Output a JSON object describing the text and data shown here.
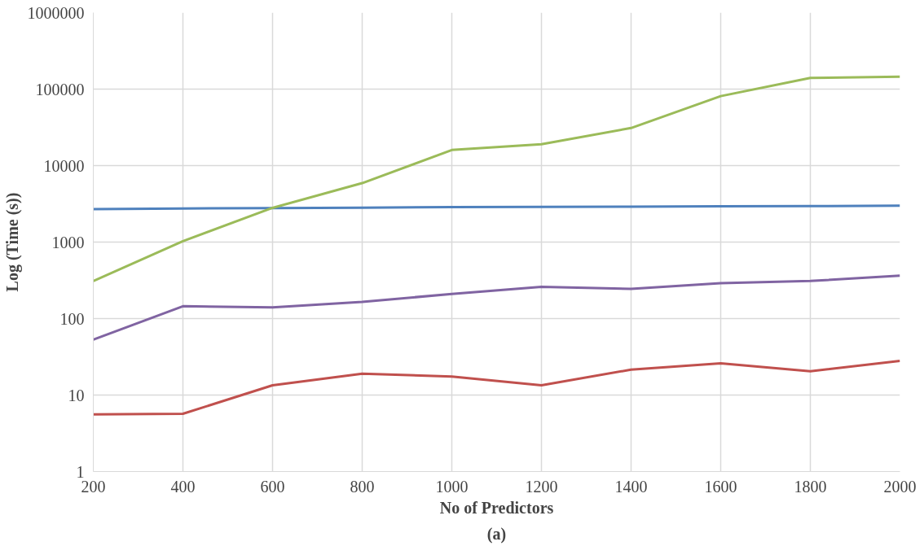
{
  "chart_data": {
    "type": "line",
    "xlabel": "No of Predictors",
    "ylabel": "Log (Time (s))",
    "annotations": [
      "(a)"
    ],
    "x": [
      200,
      400,
      600,
      800,
      1000,
      1200,
      1400,
      1600,
      1800,
      2000
    ],
    "series": [
      {
        "color": "#4f81bd",
        "values": [
          2700,
          2750,
          2780,
          2820,
          2860,
          2880,
          2900,
          2930,
          2950,
          3000
        ]
      },
      {
        "color": "#c0504d",
        "values": [
          5.6,
          5.7,
          13.4,
          19,
          17.5,
          13.4,
          21.5,
          26,
          20.5,
          28
        ]
      },
      {
        "color": "#9bbb59",
        "values": [
          310,
          1030,
          2800,
          5900,
          16000,
          19000,
          31000,
          81000,
          140000,
          145000
        ]
      },
      {
        "color": "#8064a2",
        "values": [
          53,
          145,
          140,
          165,
          210,
          260,
          245,
          290,
          310,
          365
        ]
      }
    ],
    "xlim": [
      200,
      2000
    ],
    "xticks": [
      200,
      400,
      600,
      800,
      1000,
      1200,
      1400,
      1600,
      1800,
      2000
    ],
    "ylim": [
      1,
      1000000
    ],
    "yticks": [
      1,
      10,
      100,
      1000,
      10000,
      100000,
      1000000
    ],
    "log": true,
    "grid": true
  }
}
